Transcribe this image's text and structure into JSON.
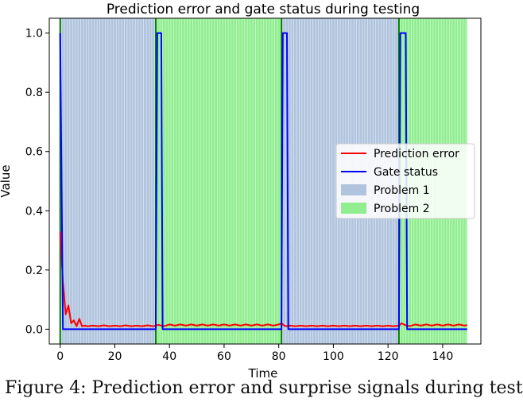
{
  "chart_data": {
    "type": "line",
    "title": "Prediction error and gate status during testing",
    "xlabel": "Time",
    "ylabel": "Value",
    "xlim": [
      -4,
      154
    ],
    "ylim": [
      -0.05,
      1.05
    ],
    "xticks": [
      0,
      20,
      40,
      60,
      80,
      100,
      120,
      140
    ],
    "yticks": [
      0.0,
      0.2,
      0.4,
      0.6,
      0.8,
      1.0
    ],
    "legend_position": "center-right",
    "series": [
      {
        "name": "Prediction error",
        "color": "#ff0000",
        "x": [
          0,
          1,
          2,
          3,
          4,
          5,
          6,
          7,
          8,
          9,
          10,
          12,
          14,
          16,
          18,
          20,
          22,
          24,
          26,
          28,
          30,
          32,
          34,
          35,
          36,
          37,
          38,
          40,
          42,
          44,
          46,
          48,
          50,
          52,
          54,
          56,
          58,
          60,
          62,
          64,
          66,
          68,
          70,
          72,
          74,
          76,
          78,
          80,
          81,
          82,
          83,
          84,
          86,
          88,
          90,
          92,
          94,
          96,
          98,
          100,
          102,
          104,
          106,
          108,
          110,
          112,
          114,
          116,
          118,
          120,
          122,
          124,
          125,
          126,
          127,
          128,
          130,
          132,
          134,
          136,
          138,
          140,
          142,
          144,
          146,
          148,
          149
        ],
        "y": [
          0.33,
          0.16,
          0.05,
          0.08,
          0.02,
          0.03,
          0.01,
          0.035,
          0.01,
          0.012,
          0.01,
          0.012,
          0.01,
          0.013,
          0.01,
          0.012,
          0.01,
          0.013,
          0.01,
          0.012,
          0.01,
          0.013,
          0.01,
          0.012,
          0.015,
          0.012,
          0.01,
          0.016,
          0.012,
          0.016,
          0.012,
          0.016,
          0.012,
          0.016,
          0.012,
          0.016,
          0.012,
          0.016,
          0.012,
          0.016,
          0.012,
          0.016,
          0.012,
          0.016,
          0.012,
          0.016,
          0.012,
          0.016,
          0.02,
          0.012,
          0.01,
          0.012,
          0.01,
          0.012,
          0.01,
          0.012,
          0.01,
          0.012,
          0.01,
          0.012,
          0.01,
          0.012,
          0.01,
          0.012,
          0.01,
          0.012,
          0.01,
          0.012,
          0.01,
          0.012,
          0.01,
          0.012,
          0.02,
          0.015,
          0.012,
          0.01,
          0.016,
          0.012,
          0.016,
          0.012,
          0.016,
          0.012,
          0.016,
          0.012,
          0.016,
          0.012,
          0.014
        ]
      },
      {
        "name": "Gate status",
        "color": "#0000ff",
        "x": [
          0,
          1,
          35,
          35.5,
          37,
          37.5,
          81,
          81.5,
          83,
          83.5,
          124,
          124.5,
          126.5,
          127,
          149
        ],
        "y": [
          1,
          0,
          0,
          1,
          1,
          0,
          0,
          1,
          1,
          0,
          0,
          1,
          1,
          0,
          0
        ]
      }
    ],
    "regions": [
      {
        "name": "Problem 1",
        "color": "#b0c4de",
        "stripe_color": "#ffffff",
        "spans": [
          [
            0,
            35
          ],
          [
            81,
            124
          ]
        ]
      },
      {
        "name": "Problem 2",
        "color": "#90ee90",
        "stripe_color": "#ffffff",
        "spans": [
          [
            35,
            81
          ],
          [
            124,
            149
          ]
        ]
      }
    ],
    "vlines": {
      "color": "#008000",
      "x": [
        0,
        35,
        81,
        124
      ]
    }
  },
  "caption": "Figure 4: Prediction error and surprise signals during test"
}
